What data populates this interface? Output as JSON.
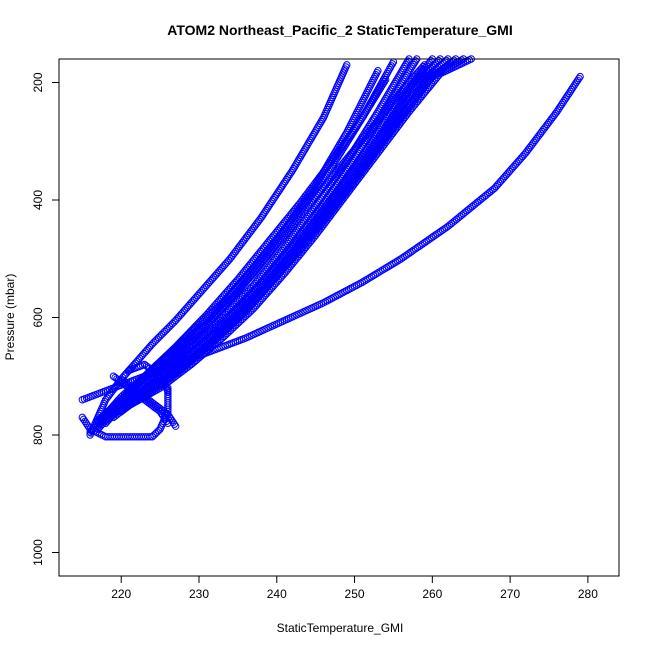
{
  "chart_data": {
    "type": "scatter",
    "title": "ATOM2 Northeast_Pacific_2 StaticTemperature_GMI",
    "xlabel": "StaticTemperature_GMI",
    "ylabel": "Pressure (mbar)",
    "xlim": [
      212,
      284
    ],
    "ylim": [
      1040,
      160
    ],
    "y_reversed": true,
    "grid": false,
    "legend": "none",
    "marker": "open-circle",
    "color": "#0000ff",
    "xticks": [
      220,
      230,
      240,
      250,
      260,
      270,
      280
    ],
    "yticks": [
      200,
      400,
      600,
      800,
      1000
    ],
    "series": [
      {
        "x": [
          216,
          217,
          218,
          220,
          222,
          224,
          227,
          230,
          234,
          238,
          242,
          246,
          249
        ],
        "y": [
          800,
          770,
          740,
          705,
          675,
          645,
          605,
          560,
          500,
          430,
          350,
          260,
          170
        ]
      },
      {
        "x": [
          216,
          218,
          220,
          223,
          226,
          229,
          233,
          237,
          241,
          245,
          249,
          253
        ],
        "y": [
          795,
          765,
          735,
          700,
          665,
          625,
          575,
          515,
          450,
          375,
          285,
          180
        ]
      },
      {
        "x": [
          217,
          219,
          221,
          224,
          227,
          231,
          235,
          239,
          243,
          247,
          251,
          255
        ],
        "y": [
          790,
          760,
          725,
          690,
          655,
          610,
          555,
          490,
          420,
          345,
          260,
          165
        ]
      },
      {
        "x": [
          217,
          219,
          222,
          225,
          229,
          233,
          237,
          241,
          245,
          249,
          253,
          257
        ],
        "y": [
          785,
          755,
          720,
          685,
          645,
          600,
          545,
          480,
          410,
          335,
          250,
          160
        ]
      },
      {
        "x": [
          218,
          220,
          223,
          226,
          230,
          234,
          238,
          242,
          246,
          250,
          254,
          258
        ],
        "y": [
          780,
          750,
          715,
          680,
          640,
          595,
          540,
          475,
          405,
          330,
          245,
          160
        ]
      },
      {
        "x": [
          218,
          221,
          224,
          228,
          232,
          236,
          240,
          244,
          248,
          252,
          256,
          260
        ],
        "y": [
          775,
          745,
          710,
          670,
          625,
          575,
          515,
          450,
          380,
          305,
          225,
          160
        ]
      },
      {
        "x": [
          219,
          222,
          225,
          229,
          233,
          237,
          241,
          245,
          249,
          253,
          257,
          261
        ],
        "y": [
          770,
          740,
          705,
          665,
          620,
          565,
          505,
          440,
          370,
          295,
          215,
          160
        ]
      },
      {
        "x": [
          219,
          222,
          226,
          230,
          234,
          238,
          242,
          246,
          250,
          254,
          258,
          262
        ],
        "y": [
          765,
          735,
          700,
          660,
          610,
          555,
          495,
          430,
          360,
          285,
          205,
          160
        ]
      },
      {
        "x": [
          220,
          223,
          227,
          231,
          235,
          239,
          243,
          247,
          251,
          255,
          259,
          263
        ],
        "y": [
          760,
          730,
          695,
          650,
          600,
          545,
          485,
          420,
          350,
          275,
          200,
          160
        ]
      },
      {
        "x": [
          220,
          224,
          228,
          232,
          236,
          240,
          244,
          248,
          252,
          256,
          260,
          264
        ],
        "y": [
          755,
          725,
          685,
          640,
          590,
          530,
          465,
          400,
          330,
          260,
          190,
          160
        ]
      },
      {
        "x": [
          221,
          225,
          229,
          233,
          237,
          241,
          245,
          249,
          253,
          257,
          261,
          265
        ],
        "y": [
          750,
          720,
          680,
          635,
          585,
          525,
          460,
          390,
          320,
          250,
          185,
          160
        ]
      },
      {
        "x": [
          218,
          221,
          225,
          229,
          233,
          237,
          241,
          245,
          249,
          253,
          256,
          259
        ],
        "y": [
          770,
          735,
          690,
          640,
          585,
          525,
          460,
          395,
          330,
          265,
          215,
          170
        ]
      },
      {
        "x": [
          217,
          220,
          223,
          227,
          231,
          235,
          239,
          243,
          247,
          251,
          254
        ],
        "y": [
          775,
          740,
          700,
          650,
          595,
          535,
          470,
          405,
          335,
          260,
          195
        ]
      },
      {
        "x": [
          215,
          218,
          222,
          226,
          231,
          236,
          241,
          246,
          251,
          256,
          262,
          268,
          272,
          276,
          279
        ],
        "y": [
          740,
          725,
          705,
          685,
          660,
          635,
          605,
          575,
          540,
          500,
          445,
          380,
          320,
          250,
          190
        ]
      },
      {
        "x": [
          215,
          216,
          218,
          220,
          222,
          224,
          225,
          226,
          226
        ],
        "y": [
          770,
          790,
          803,
          803,
          803,
          803,
          790,
          760,
          720
        ]
      },
      {
        "x": [
          219,
          221,
          223,
          225,
          226
        ],
        "y": [
          700,
          720,
          740,
          760,
          780
        ]
      },
      {
        "x": [
          220,
          222,
          224,
          226,
          227
        ],
        "y": [
          705,
          725,
          745,
          765,
          785
        ]
      },
      {
        "x": [
          221,
          223,
          225,
          226
        ],
        "y": [
          690,
          680,
          700,
          725
        ]
      }
    ]
  }
}
